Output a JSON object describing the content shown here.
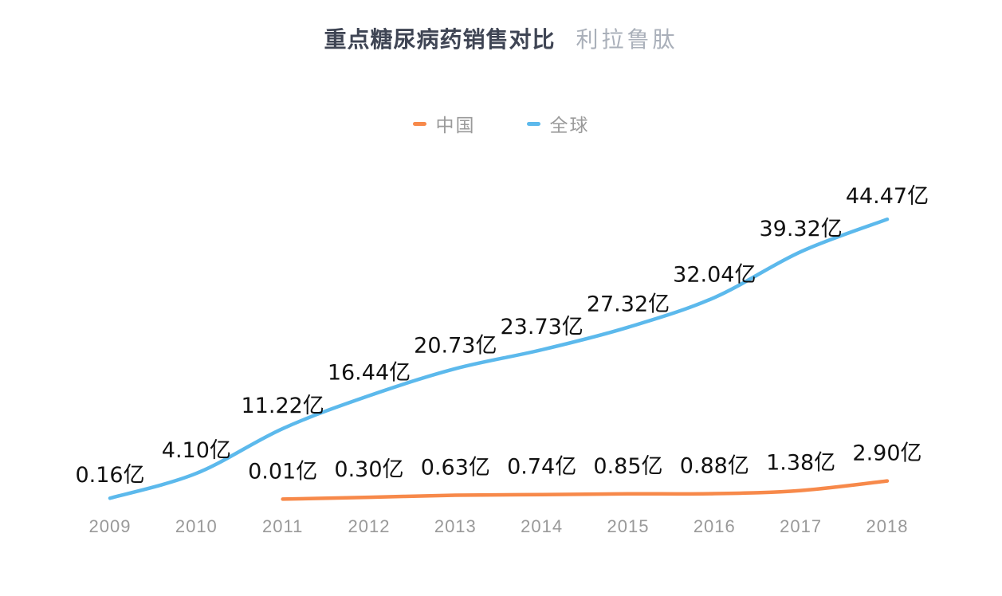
{
  "header": {
    "title": "重点糖尿病药销售对比",
    "subtitle": "利拉鲁肽"
  },
  "chart_data": {
    "type": "line",
    "title": "重点糖尿病药销售对比",
    "subtitle": "利拉鲁肽",
    "unit": "亿",
    "grid": false,
    "y_axis_visible": false,
    "legend_position": "top-center",
    "ylim": [
      0,
      48
    ],
    "categories": [
      "2009",
      "2010",
      "2011",
      "2012",
      "2013",
      "2014",
      "2015",
      "2016",
      "2017",
      "2018"
    ],
    "series": [
      {
        "name": "中国",
        "color": "#F7894A",
        "values": [
          null,
          null,
          0.01,
          0.3,
          0.63,
          0.74,
          0.85,
          0.88,
          1.38,
          2.9
        ],
        "labels": [
          "",
          "",
          "0.01亿",
          "0.30亿",
          "0.63亿",
          "0.74亿",
          "0.85亿",
          "0.88亿",
          "1.38亿",
          "2.90亿"
        ]
      },
      {
        "name": "全球",
        "color": "#5CB9EC",
        "values": [
          0.16,
          4.1,
          11.22,
          16.44,
          20.73,
          23.73,
          27.32,
          32.04,
          39.32,
          44.47
        ],
        "labels": [
          "0.16亿",
          "4.10亿",
          "11.22亿",
          "16.44亿",
          "20.73亿",
          "23.73亿",
          "27.32亿",
          "32.04亿",
          "39.32亿",
          "44.47亿"
        ]
      }
    ],
    "label_color": "#111111",
    "axis_label_color": "#999999"
  }
}
